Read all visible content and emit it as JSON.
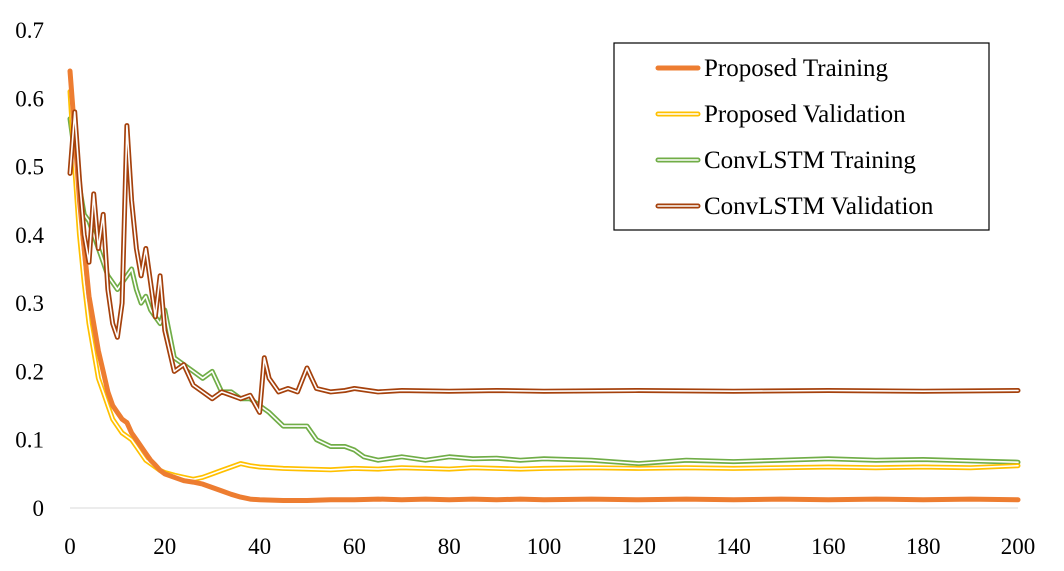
{
  "chart_data": {
    "type": "line",
    "title": "",
    "xlabel": "",
    "ylabel": "",
    "xlim": [
      0,
      200
    ],
    "ylim": [
      0,
      0.7
    ],
    "xticks": [
      0,
      20,
      40,
      60,
      80,
      100,
      120,
      140,
      160,
      180,
      200
    ],
    "yticks": [
      0,
      0.1,
      0.2,
      0.3,
      0.4,
      0.5,
      0.6,
      0.7
    ],
    "xtick_labels": [
      "0",
      "20",
      "40",
      "60",
      "80",
      "100",
      "120",
      "140",
      "160",
      "180",
      "200"
    ],
    "ytick_labels": [
      "0",
      "0.1",
      "0.2",
      "0.3",
      "0.4",
      "0.5",
      "0.6",
      "0.7"
    ],
    "grid": false,
    "legend_position": "top-right",
    "series": [
      {
        "name": "Proposed Training",
        "color": "#ED7D31",
        "style": "thick",
        "x": [
          0,
          1,
          2,
          3,
          4,
          5,
          6,
          7,
          8,
          9,
          10,
          11,
          12,
          13,
          14,
          15,
          16,
          17,
          18,
          19,
          20,
          22,
          24,
          26,
          28,
          30,
          32,
          34,
          36,
          38,
          40,
          45,
          50,
          55,
          60,
          65,
          70,
          75,
          80,
          85,
          90,
          95,
          100,
          110,
          120,
          130,
          140,
          150,
          160,
          170,
          180,
          190,
          200
        ],
        "y": [
          0.64,
          0.55,
          0.45,
          0.38,
          0.31,
          0.27,
          0.23,
          0.2,
          0.17,
          0.15,
          0.14,
          0.13,
          0.125,
          0.11,
          0.1,
          0.09,
          0.08,
          0.07,
          0.063,
          0.055,
          0.05,
          0.045,
          0.04,
          0.038,
          0.035,
          0.03,
          0.025,
          0.02,
          0.016,
          0.013,
          0.012,
          0.011,
          0.011,
          0.012,
          0.012,
          0.013,
          0.012,
          0.013,
          0.012,
          0.013,
          0.012,
          0.013,
          0.012,
          0.013,
          0.012,
          0.013,
          0.012,
          0.013,
          0.012,
          0.013,
          0.012,
          0.013,
          0.012
        ]
      },
      {
        "name": "Proposed Validation",
        "color": "#FFC000",
        "style": "double",
        "x": [
          0,
          1,
          2,
          3,
          4,
          5,
          6,
          7,
          8,
          9,
          10,
          11,
          12,
          13,
          14,
          15,
          16,
          17,
          18,
          19,
          20,
          22,
          24,
          26,
          28,
          30,
          32,
          34,
          36,
          38,
          40,
          45,
          50,
          55,
          60,
          65,
          70,
          75,
          80,
          85,
          90,
          95,
          100,
          110,
          120,
          130,
          140,
          150,
          160,
          170,
          180,
          190,
          200
        ],
        "y": [
          0.61,
          0.5,
          0.4,
          0.33,
          0.27,
          0.23,
          0.19,
          0.17,
          0.15,
          0.13,
          0.12,
          0.11,
          0.105,
          0.1,
          0.09,
          0.08,
          0.07,
          0.065,
          0.06,
          0.055,
          0.052,
          0.048,
          0.045,
          0.042,
          0.045,
          0.05,
          0.055,
          0.06,
          0.065,
          0.062,
          0.06,
          0.058,
          0.057,
          0.056,
          0.058,
          0.057,
          0.059,
          0.058,
          0.057,
          0.059,
          0.058,
          0.057,
          0.058,
          0.059,
          0.058,
          0.059,
          0.058,
          0.059,
          0.06,
          0.059,
          0.06,
          0.059,
          0.062
        ]
      },
      {
        "name": "ConvLSTM Training",
        "color": "#70AD47",
        "style": "double",
        "x": [
          0,
          1,
          2,
          3,
          4,
          5,
          6,
          7,
          8,
          9,
          10,
          11,
          12,
          13,
          14,
          15,
          16,
          17,
          18,
          19,
          20,
          22,
          24,
          26,
          28,
          30,
          32,
          34,
          36,
          38,
          40,
          42,
          45,
          48,
          50,
          52,
          55,
          58,
          60,
          62,
          65,
          70,
          75,
          80,
          85,
          90,
          95,
          100,
          110,
          120,
          130,
          140,
          150,
          160,
          170,
          180,
          190,
          200
        ],
        "y": [
          0.57,
          0.52,
          0.47,
          0.43,
          0.42,
          0.4,
          0.38,
          0.36,
          0.34,
          0.33,
          0.32,
          0.33,
          0.34,
          0.35,
          0.32,
          0.3,
          0.31,
          0.29,
          0.28,
          0.27,
          0.29,
          0.22,
          0.21,
          0.2,
          0.19,
          0.2,
          0.17,
          0.17,
          0.16,
          0.16,
          0.15,
          0.14,
          0.12,
          0.12,
          0.12,
          0.1,
          0.09,
          0.09,
          0.085,
          0.075,
          0.07,
          0.075,
          0.07,
          0.075,
          0.072,
          0.073,
          0.07,
          0.072,
          0.07,
          0.065,
          0.07,
          0.068,
          0.07,
          0.072,
          0.07,
          0.071,
          0.069,
          0.067
        ]
      },
      {
        "name": "ConvLSTM Validation",
        "color": "#A5410C",
        "style": "double",
        "x": [
          0,
          1,
          2,
          3,
          4,
          5,
          6,
          7,
          8,
          9,
          10,
          11,
          12,
          13,
          14,
          15,
          16,
          17,
          18,
          19,
          20,
          22,
          24,
          26,
          28,
          30,
          32,
          34,
          36,
          38,
          40,
          41,
          42,
          44,
          46,
          48,
          50,
          51,
          52,
          55,
          58,
          60,
          65,
          70,
          80,
          90,
          100,
          120,
          140,
          160,
          180,
          200
        ],
        "y": [
          0.49,
          0.58,
          0.48,
          0.4,
          0.36,
          0.46,
          0.38,
          0.43,
          0.32,
          0.27,
          0.25,
          0.3,
          0.56,
          0.45,
          0.38,
          0.34,
          0.38,
          0.33,
          0.28,
          0.34,
          0.26,
          0.2,
          0.21,
          0.18,
          0.17,
          0.16,
          0.17,
          0.165,
          0.16,
          0.165,
          0.14,
          0.22,
          0.19,
          0.17,
          0.175,
          0.17,
          0.205,
          0.19,
          0.175,
          0.17,
          0.172,
          0.175,
          0.17,
          0.172,
          0.171,
          0.172,
          0.171,
          0.172,
          0.171,
          0.172,
          0.171,
          0.172
        ]
      }
    ]
  }
}
